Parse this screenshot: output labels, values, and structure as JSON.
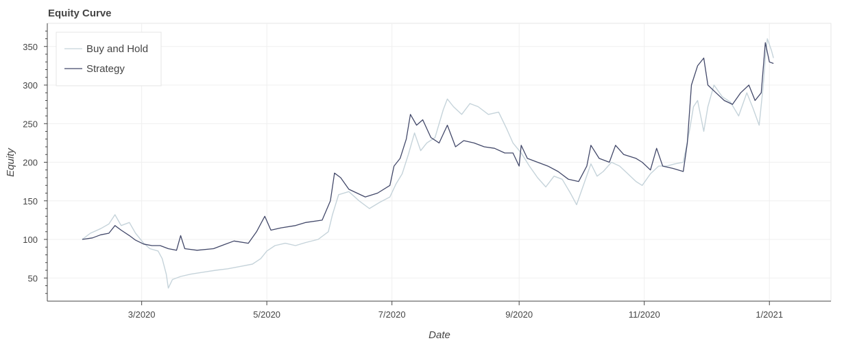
{
  "chart_data": {
    "type": "line",
    "title": "Equity Curve",
    "xlabel": "Date",
    "ylabel": "Equity",
    "x_type": "date",
    "xlim": [
      "2020-01-15",
      "2021-01-31"
    ],
    "ylim": [
      20,
      380
    ],
    "x_ticks": [
      {
        "date": "2020-03-01",
        "label": "3/2020"
      },
      {
        "date": "2020-05-01",
        "label": "5/2020"
      },
      {
        "date": "2020-07-01",
        "label": "7/2020"
      },
      {
        "date": "2020-09-01",
        "label": "9/2020"
      },
      {
        "date": "2020-11-01",
        "label": "11/2020"
      },
      {
        "date": "2021-01-01",
        "label": "1/2021"
      }
    ],
    "y_ticks": [
      50,
      100,
      150,
      200,
      250,
      300,
      350
    ],
    "grid": true,
    "legend_position": "top-left",
    "series": [
      {
        "name": "Buy and Hold",
        "color": "#c5d3da",
        "points": [
          [
            "2020-02-01",
            100
          ],
          [
            "2020-02-05",
            108
          ],
          [
            "2020-02-10",
            114
          ],
          [
            "2020-02-14",
            120
          ],
          [
            "2020-02-17",
            132
          ],
          [
            "2020-02-20",
            118
          ],
          [
            "2020-02-24",
            122
          ],
          [
            "2020-02-27",
            108
          ],
          [
            "2020-03-02",
            95
          ],
          [
            "2020-03-05",
            88
          ],
          [
            "2020-03-09",
            85
          ],
          [
            "2020-03-11",
            75
          ],
          [
            "2020-03-13",
            55
          ],
          [
            "2020-03-14",
            37
          ],
          [
            "2020-03-16",
            48
          ],
          [
            "2020-03-20",
            52
          ],
          [
            "2020-03-25",
            55
          ],
          [
            "2020-04-01",
            58
          ],
          [
            "2020-04-06",
            60
          ],
          [
            "2020-04-12",
            62
          ],
          [
            "2020-04-18",
            65
          ],
          [
            "2020-04-24",
            68
          ],
          [
            "2020-04-28",
            75
          ],
          [
            "2020-05-01",
            85
          ],
          [
            "2020-05-05",
            92
          ],
          [
            "2020-05-10",
            95
          ],
          [
            "2020-05-15",
            92
          ],
          [
            "2020-05-20",
            96
          ],
          [
            "2020-05-26",
            100
          ],
          [
            "2020-05-31",
            110
          ],
          [
            "2020-06-02",
            132
          ],
          [
            "2020-06-05",
            158
          ],
          [
            "2020-06-10",
            162
          ],
          [
            "2020-06-15",
            150
          ],
          [
            "2020-06-20",
            140
          ],
          [
            "2020-06-25",
            148
          ],
          [
            "2020-06-30",
            155
          ],
          [
            "2020-07-03",
            172
          ],
          [
            "2020-07-06",
            185
          ],
          [
            "2020-07-09",
            210
          ],
          [
            "2020-07-12",
            238
          ],
          [
            "2020-07-15",
            215
          ],
          [
            "2020-07-18",
            225
          ],
          [
            "2020-07-22",
            232
          ],
          [
            "2020-07-26",
            268
          ],
          [
            "2020-07-28",
            282
          ],
          [
            "2020-07-31",
            272
          ],
          [
            "2020-08-04",
            262
          ],
          [
            "2020-08-08",
            276
          ],
          [
            "2020-08-12",
            272
          ],
          [
            "2020-08-17",
            262
          ],
          [
            "2020-08-22",
            265
          ],
          [
            "2020-08-26",
            243
          ],
          [
            "2020-08-29",
            225
          ],
          [
            "2020-09-02",
            212
          ],
          [
            "2020-09-06",
            195
          ],
          [
            "2020-09-10",
            180
          ],
          [
            "2020-09-14",
            168
          ],
          [
            "2020-09-18",
            182
          ],
          [
            "2020-09-22",
            178
          ],
          [
            "2020-09-26",
            160
          ],
          [
            "2020-09-29",
            145
          ],
          [
            "2020-10-03",
            175
          ],
          [
            "2020-10-06",
            198
          ],
          [
            "2020-10-09",
            182
          ],
          [
            "2020-10-12",
            188
          ],
          [
            "2020-10-16",
            200
          ],
          [
            "2020-10-20",
            195
          ],
          [
            "2020-10-24",
            185
          ],
          [
            "2020-10-28",
            175
          ],
          [
            "2020-10-31",
            170
          ],
          [
            "2020-11-04",
            185
          ],
          [
            "2020-11-08",
            195
          ],
          [
            "2020-11-12",
            195
          ],
          [
            "2020-11-16",
            198
          ],
          [
            "2020-11-20",
            200
          ],
          [
            "2020-11-23",
            240
          ],
          [
            "2020-11-25",
            272
          ],
          [
            "2020-11-27",
            280
          ],
          [
            "2020-11-30",
            240
          ],
          [
            "2020-12-02",
            272
          ],
          [
            "2020-12-05",
            300
          ],
          [
            "2020-12-09",
            285
          ],
          [
            "2020-12-13",
            278
          ],
          [
            "2020-12-17",
            260
          ],
          [
            "2020-12-21",
            290
          ],
          [
            "2020-12-24",
            270
          ],
          [
            "2020-12-27",
            248
          ],
          [
            "2020-12-29",
            300
          ],
          [
            "2020-12-30",
            335
          ],
          [
            "2020-12-31",
            360
          ],
          [
            "2021-01-02",
            345
          ],
          [
            "2021-01-03",
            335
          ]
        ]
      },
      {
        "name": "Strategy",
        "color": "#424869",
        "points": [
          [
            "2020-02-01",
            100
          ],
          [
            "2020-02-06",
            102
          ],
          [
            "2020-02-10",
            106
          ],
          [
            "2020-02-14",
            108
          ],
          [
            "2020-02-17",
            118
          ],
          [
            "2020-02-20",
            112
          ],
          [
            "2020-02-24",
            105
          ],
          [
            "2020-02-27",
            99
          ],
          [
            "2020-03-02",
            94
          ],
          [
            "2020-03-06",
            92
          ],
          [
            "2020-03-10",
            92
          ],
          [
            "2020-03-14",
            88
          ],
          [
            "2020-03-18",
            86
          ],
          [
            "2020-03-20",
            105
          ],
          [
            "2020-03-22",
            88
          ],
          [
            "2020-03-28",
            86
          ],
          [
            "2020-04-05",
            88
          ],
          [
            "2020-04-10",
            93
          ],
          [
            "2020-04-15",
            98
          ],
          [
            "2020-04-22",
            95
          ],
          [
            "2020-04-26",
            110
          ],
          [
            "2020-04-30",
            130
          ],
          [
            "2020-05-03",
            112
          ],
          [
            "2020-05-08",
            115
          ],
          [
            "2020-05-15",
            118
          ],
          [
            "2020-05-20",
            122
          ],
          [
            "2020-05-28",
            125
          ],
          [
            "2020-06-01",
            150
          ],
          [
            "2020-06-03",
            186
          ],
          [
            "2020-06-06",
            180
          ],
          [
            "2020-06-10",
            165
          ],
          [
            "2020-06-14",
            160
          ],
          [
            "2020-06-18",
            155
          ],
          [
            "2020-06-24",
            160
          ],
          [
            "2020-06-30",
            170
          ],
          [
            "2020-07-02",
            195
          ],
          [
            "2020-07-05",
            205
          ],
          [
            "2020-07-08",
            230
          ],
          [
            "2020-07-10",
            262
          ],
          [
            "2020-07-13",
            248
          ],
          [
            "2020-07-16",
            255
          ],
          [
            "2020-07-20",
            232
          ],
          [
            "2020-07-24",
            225
          ],
          [
            "2020-07-28",
            248
          ],
          [
            "2020-08-01",
            220
          ],
          [
            "2020-08-05",
            228
          ],
          [
            "2020-08-10",
            225
          ],
          [
            "2020-08-15",
            220
          ],
          [
            "2020-08-20",
            218
          ],
          [
            "2020-08-25",
            212
          ],
          [
            "2020-08-29",
            212
          ],
          [
            "2020-09-01",
            195
          ],
          [
            "2020-09-02",
            222
          ],
          [
            "2020-09-05",
            205
          ],
          [
            "2020-09-10",
            200
          ],
          [
            "2020-09-15",
            195
          ],
          [
            "2020-09-20",
            188
          ],
          [
            "2020-09-25",
            178
          ],
          [
            "2020-09-30",
            175
          ],
          [
            "2020-10-04",
            195
          ],
          [
            "2020-10-06",
            222
          ],
          [
            "2020-10-10",
            205
          ],
          [
            "2020-10-15",
            200
          ],
          [
            "2020-10-18",
            222
          ],
          [
            "2020-10-22",
            210
          ],
          [
            "2020-10-28",
            205
          ],
          [
            "2020-10-31",
            200
          ],
          [
            "2020-11-04",
            190
          ],
          [
            "2020-11-07",
            218
          ],
          [
            "2020-11-10",
            195
          ],
          [
            "2020-11-15",
            192
          ],
          [
            "2020-11-20",
            188
          ],
          [
            "2020-11-22",
            225
          ],
          [
            "2020-11-24",
            300
          ],
          [
            "2020-11-27",
            325
          ],
          [
            "2020-11-30",
            335
          ],
          [
            "2020-12-02",
            300
          ],
          [
            "2020-12-06",
            290
          ],
          [
            "2020-12-10",
            280
          ],
          [
            "2020-12-14",
            275
          ],
          [
            "2020-12-18",
            290
          ],
          [
            "2020-12-22",
            300
          ],
          [
            "2020-12-25",
            280
          ],
          [
            "2020-12-28",
            290
          ],
          [
            "2020-12-30",
            355
          ],
          [
            "2021-01-01",
            330
          ],
          [
            "2021-01-03",
            328
          ]
        ]
      }
    ]
  }
}
